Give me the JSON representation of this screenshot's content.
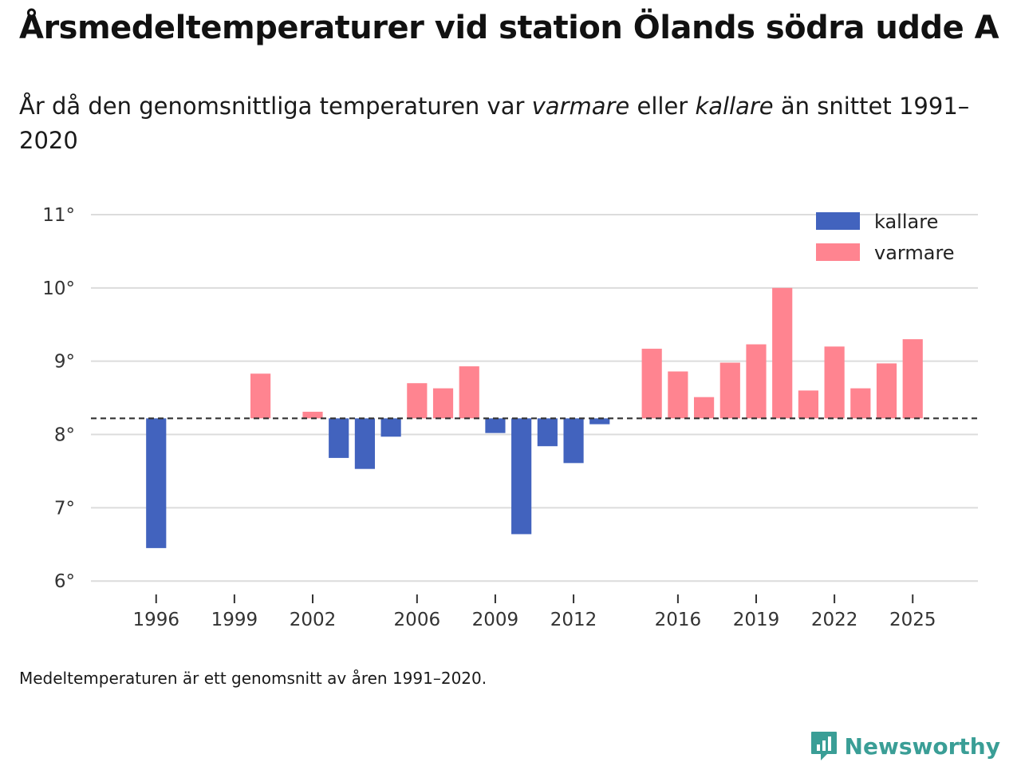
{
  "title": "Årsmedeltemperaturer vid station Ölands södra udde A",
  "subtitle": {
    "p1": "År då den genomsnittliga temperaturen var ",
    "warm": "varmare",
    "p2": " eller ",
    "cold": "kallare",
    "p3": " än snittet 1991–2020"
  },
  "note": "Medeltemperaturen är ett genomsnitt av åren 1991–2020.",
  "brand": "Newsworthy",
  "colors": {
    "cold": "#4263be",
    "warm": "#ff8490",
    "grid": "#dcdcdc",
    "reference": "#333333",
    "brand": "#3a9e96"
  },
  "chart_data": {
    "type": "bar",
    "baseline": 8.22,
    "ylim": [
      5.85,
      11.25
    ],
    "yticks": [
      6,
      7,
      8,
      9,
      10,
      11
    ],
    "ytick_labels": [
      "6°",
      "7°",
      "8°",
      "9°",
      "10°",
      "11°"
    ],
    "xlim": [
      1993.5,
      2027.5
    ],
    "xticks": [
      1996,
      1999,
      2002,
      2006,
      2009,
      2012,
      2016,
      2019,
      2022,
      2025
    ],
    "legend": {
      "position": "top-right",
      "items": [
        {
          "key": "cold",
          "label": "kallare"
        },
        {
          "key": "warm",
          "label": "varmare"
        }
      ]
    },
    "series": [
      {
        "year": 1996,
        "value": 6.45
      },
      {
        "year": 2000,
        "value": 8.83
      },
      {
        "year": 2002,
        "value": 8.31
      },
      {
        "year": 2003,
        "value": 7.68
      },
      {
        "year": 2004,
        "value": 7.53
      },
      {
        "year": 2005,
        "value": 7.97
      },
      {
        "year": 2006,
        "value": 8.7
      },
      {
        "year": 2007,
        "value": 8.63
      },
      {
        "year": 2008,
        "value": 8.93
      },
      {
        "year": 2009,
        "value": 8.02
      },
      {
        "year": 2010,
        "value": 6.64
      },
      {
        "year": 2011,
        "value": 7.84
      },
      {
        "year": 2012,
        "value": 7.61
      },
      {
        "year": 2013,
        "value": 8.14
      },
      {
        "year": 2015,
        "value": 9.17
      },
      {
        "year": 2016,
        "value": 8.86
      },
      {
        "year": 2017,
        "value": 8.51
      },
      {
        "year": 2018,
        "value": 8.98
      },
      {
        "year": 2019,
        "value": 9.23
      },
      {
        "year": 2020,
        "value": 10.0
      },
      {
        "year": 2021,
        "value": 8.6
      },
      {
        "year": 2022,
        "value": 9.2
      },
      {
        "year": 2023,
        "value": 8.63
      },
      {
        "year": 2024,
        "value": 8.97
      },
      {
        "year": 2025,
        "value": 9.3
      }
    ]
  }
}
